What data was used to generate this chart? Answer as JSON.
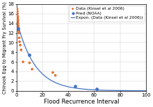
{
  "title": "",
  "xlabel": "Flood Recurrence Interval",
  "ylabel": "Chinook Egg to Migrant Fry Survival (%)",
  "xlim": [
    0,
    100
  ],
  "ylim": [
    0,
    18
  ],
  "yticks": [
    0,
    2,
    4,
    6,
    8,
    10,
    12,
    14,
    16,
    18
  ],
  "xticks": [
    0,
    20,
    40,
    60,
    80,
    100
  ],
  "data_points_x": [
    0.4,
    0.6,
    0.7,
    0.8,
    0.9,
    1.0,
    1.1,
    1.2,
    1.3,
    1.5,
    1.6,
    1.8,
    2.0,
    2.3,
    2.8,
    3.5,
    5.0,
    10.0,
    12.0,
    28.0,
    30.0
  ],
  "data_points_y": [
    17.0,
    16.5,
    16.0,
    15.5,
    15.2,
    14.8,
    14.5,
    14.0,
    13.5,
    13.0,
    12.5,
    12.0,
    11.0,
    10.2,
    9.5,
    8.5,
    6.0,
    5.8,
    4.5,
    3.8,
    3.2
  ],
  "pred_points_x": [
    1.0,
    10.0,
    45.0,
    62.0
  ],
  "pred_points_y": [
    13.0,
    7.5,
    1.0,
    0.45
  ],
  "exp_a": 14.8,
  "exp_b": -0.072,
  "data_color": "#E07030",
  "pred_color": "#4472C4",
  "line_color": "#4472C4",
  "bg_color": "#FFFFFF",
  "grid_color": "#C8C8C8",
  "legend_labels": [
    "Data (Kinsel et al 2006)",
    "Pred (NOAA)",
    "Expon. (Data (Kinsel et al 2006))"
  ],
  "ylabel_fontsize": 4.8,
  "xlabel_fontsize": 6.0,
  "tick_fontsize": 5.0,
  "legend_fontsize": 4.2
}
